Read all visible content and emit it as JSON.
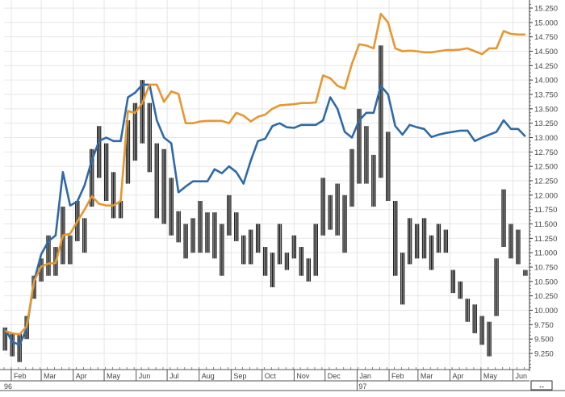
{
  "chart_data": {
    "type": "line",
    "title": "",
    "xlabel": "",
    "ylabel": "",
    "ylim": [
      9.0,
      15.35
    ],
    "xlim": [
      "1996-01-25",
      "1997-06-17"
    ],
    "grid": true,
    "y_axis_side": "right",
    "y_ticks": [
      "9.250",
      "9.500",
      "9.750",
      "10.000",
      "10.250",
      "10.500",
      "10.750",
      "11.000",
      "11.250",
      "11.500",
      "11.750",
      "12.000",
      "12.250",
      "12.500",
      "12.750",
      "13.000",
      "13.250",
      "13.500",
      "13.750",
      "14.000",
      "14.250",
      "14.500",
      "14.750",
      "15.000",
      "15.250"
    ],
    "month_ticks": [
      {
        "date": "1996-02-01",
        "label": "Feb"
      },
      {
        "date": "1996-03-01",
        "label": "Mar"
      },
      {
        "date": "1996-04-01",
        "label": "Apr"
      },
      {
        "date": "1996-05-01",
        "label": "May"
      },
      {
        "date": "1996-06-01",
        "label": "Jun"
      },
      {
        "date": "1996-07-01",
        "label": "Jul"
      },
      {
        "date": "1996-08-01",
        "label": "Aug"
      },
      {
        "date": "1996-09-01",
        "label": "Sep"
      },
      {
        "date": "1996-10-01",
        "label": "Oct"
      },
      {
        "date": "1996-11-01",
        "label": "Nov"
      },
      {
        "date": "1996-12-01",
        "label": "Dec"
      },
      {
        "date": "1997-01-01",
        "label": "Jan"
      },
      {
        "date": "1997-02-01",
        "label": "Feb"
      },
      {
        "date": "1997-03-01",
        "label": "Mar"
      },
      {
        "date": "1997-04-01",
        "label": "Apr"
      },
      {
        "date": "1997-05-01",
        "label": "May"
      },
      {
        "date": "1997-06-01",
        "label": "Jun"
      }
    ],
    "year_ticks": [
      {
        "date": "1996-01-25",
        "label": "96"
      },
      {
        "date": "1997-01-01",
        "label": "97"
      }
    ],
    "dates": [
      "1996-01-26",
      "1996-02-02",
      "1996-02-09",
      "1996-02-16",
      "1996-02-23",
      "1996-03-01",
      "1996-03-08",
      "1996-03-15",
      "1996-03-22",
      "1996-03-29",
      "1996-04-05",
      "1996-04-12",
      "1996-04-19",
      "1996-04-26",
      "1996-05-03",
      "1996-05-10",
      "1996-05-17",
      "1996-05-24",
      "1996-05-31",
      "1996-06-07",
      "1996-06-14",
      "1996-06-21",
      "1996-06-28",
      "1996-07-05",
      "1996-07-12",
      "1996-07-19",
      "1996-07-26",
      "1996-08-02",
      "1996-08-09",
      "1996-08-16",
      "1996-08-23",
      "1996-08-30",
      "1996-09-06",
      "1996-09-13",
      "1996-09-20",
      "1996-09-27",
      "1996-10-04",
      "1996-10-11",
      "1996-10-18",
      "1996-10-25",
      "1996-11-01",
      "1996-11-08",
      "1996-11-15",
      "1996-11-22",
      "1996-11-29",
      "1996-12-06",
      "1996-12-13",
      "1996-12-20",
      "1996-12-27",
      "1997-01-03",
      "1997-01-10",
      "1997-01-17",
      "1997-01-24",
      "1997-01-31",
      "1997-02-07",
      "1997-02-14",
      "1997-02-21",
      "1997-02-28",
      "1997-03-07",
      "1997-03-14",
      "1997-03-21",
      "1997-03-28",
      "1997-04-04",
      "1997-04-11",
      "1997-04-18",
      "1997-04-25",
      "1997-05-02",
      "1997-05-09",
      "1997-05-16",
      "1997-05-23",
      "1997-05-30",
      "1997-06-06",
      "1997-06-13"
    ],
    "price_bars": {
      "high": [
        9.7,
        9.6,
        9.6,
        9.9,
        10.6,
        10.9,
        11.3,
        11.1,
        11.8,
        11.3,
        11.9,
        11.6,
        12.8,
        13.2,
        12.9,
        12.4,
        11.9,
        13.3,
        13.6,
        14.0,
        13.6,
        12.9,
        12.8,
        12.3,
        11.72,
        11.5,
        11.6,
        11.9,
        11.7,
        11.7,
        11.5,
        12.0,
        11.7,
        11.3,
        11.4,
        11.5,
        11.1,
        11.0,
        11.5,
        11.0,
        11.3,
        11.1,
        10.9,
        11.5,
        12.3,
        12.0,
        12.2,
        12.0,
        12.8,
        13.5,
        13.2,
        12.7,
        14.6,
        13.1,
        11.9,
        11.0,
        11.6,
        11.5,
        11.6,
        11.3,
        11.5,
        11.4,
        10.7,
        10.5,
        10.2,
        10.1,
        9.9,
        9.8,
        10.9,
        12.1,
        11.5,
        11.4,
        10.7
      ],
      "low": [
        9.3,
        9.2,
        9.1,
        9.5,
        10.2,
        10.5,
        10.6,
        10.6,
        10.8,
        10.8,
        11.2,
        11.0,
        11.8,
        12.3,
        11.9,
        11.6,
        11.6,
        12.2,
        12.6,
        12.9,
        12.4,
        11.6,
        11.5,
        11.3,
        11.18,
        10.9,
        11.0,
        11.0,
        11.0,
        10.9,
        10.6,
        11.3,
        11.2,
        10.8,
        10.8,
        11.0,
        10.6,
        10.4,
        10.8,
        10.7,
        10.9,
        10.6,
        10.5,
        10.6,
        11.3,
        11.4,
        11.3,
        11.0,
        11.8,
        12.2,
        12.2,
        11.8,
        12.3,
        11.9,
        10.6,
        10.1,
        10.8,
        10.9,
        10.9,
        10.7,
        11.0,
        11.0,
        10.3,
        10.2,
        9.8,
        9.6,
        9.4,
        9.2,
        9.9,
        11.1,
        10.9,
        10.8,
        10.6
      ]
    },
    "series": [
      {
        "color": "#2e6aa8",
        "values": [
          9.68,
          9.45,
          9.4,
          9.68,
          10.5,
          10.97,
          11.2,
          11.3,
          12.4,
          11.82,
          11.89,
          12.17,
          12.6,
          12.94,
          13.0,
          12.94,
          12.94,
          13.7,
          13.78,
          13.92,
          13.92,
          13.3,
          13.0,
          12.9,
          12.05,
          12.15,
          12.24,
          12.24,
          12.24,
          12.45,
          12.38,
          12.5,
          12.4,
          12.2,
          12.6,
          12.94,
          12.98,
          13.2,
          13.25,
          13.18,
          13.17,
          13.22,
          13.22,
          13.22,
          13.3,
          13.7,
          13.5,
          13.1,
          13.0,
          13.3,
          13.43,
          13.43,
          13.9,
          13.75,
          13.2,
          13.05,
          13.22,
          13.18,
          13.15,
          13.01,
          13.05,
          13.08,
          13.1,
          13.12,
          13.12,
          12.94,
          13.0,
          13.05,
          13.1,
          13.3,
          13.15,
          13.15,
          13.02
        ]
      },
      {
        "color": "#e8962e",
        "values": [
          9.64,
          9.6,
          9.58,
          9.72,
          10.5,
          10.76,
          10.81,
          10.82,
          11.3,
          11.33,
          11.54,
          11.75,
          11.98,
          11.85,
          11.82,
          11.82,
          11.9,
          13.46,
          13.43,
          13.6,
          13.92,
          13.92,
          13.62,
          13.8,
          13.76,
          13.25,
          13.25,
          13.28,
          13.29,
          13.29,
          13.29,
          13.25,
          13.43,
          13.38,
          13.28,
          13.36,
          13.4,
          13.5,
          13.56,
          13.57,
          13.58,
          13.6,
          13.6,
          13.61,
          14.08,
          14.03,
          13.9,
          13.85,
          14.28,
          14.62,
          14.6,
          14.55,
          15.15,
          15.0,
          14.55,
          14.5,
          14.51,
          14.5,
          14.48,
          14.48,
          14.5,
          14.52,
          14.52,
          14.53,
          14.55,
          14.5,
          14.45,
          14.55,
          14.55,
          14.85,
          14.8,
          14.79,
          14.79
        ]
      }
    ]
  },
  "ui": {
    "scroll_button_label": "↔"
  }
}
